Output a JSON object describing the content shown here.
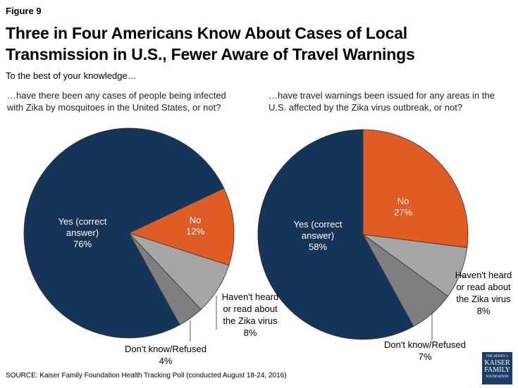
{
  "figure_label": "Figure 9",
  "title": "Three in Four Americans Know About Cases of Local Transmission in U.S., Fewer Aware of Travel Warnings",
  "subtitle": "To the best of your knowledge…",
  "source": "SOURCE: Kaiser Family Foundation Health Tracking Poll (conducted August 18-24, 2016)",
  "logo_text": "THE HENRY J. KAISER FAMILY FOUNDATION",
  "colors": {
    "yes": "#15345a",
    "no": "#e05c25",
    "havent": "#a6a6a6",
    "dontknow": "#7f7f7f"
  },
  "chart_data": [
    {
      "type": "pie",
      "title": "…have there been any cases of people being infected with Zika by mosquitoes in the United States, or not?",
      "slices": [
        {
          "key": "no",
          "label": "No",
          "value": 12,
          "display": "12%"
        },
        {
          "key": "havent",
          "label": "Haven't heard or read about the Zika virus",
          "value": 8,
          "display": "8%"
        },
        {
          "key": "dontknow",
          "label": "Don't know/Refused",
          "value": 4,
          "display": "4%"
        },
        {
          "key": "yes",
          "label": "Yes (correct answer)",
          "value": 76,
          "display": "76%"
        }
      ]
    },
    {
      "type": "pie",
      "title": "…have travel warnings been issued for any areas in the U.S. affected by the Zika virus outbreak, or not?",
      "slices": [
        {
          "key": "no",
          "label": "No",
          "value": 27,
          "display": "27%"
        },
        {
          "key": "havent",
          "label": "Haven't heard or read about the Zika virus",
          "value": 8,
          "display": "8%"
        },
        {
          "key": "dontknow",
          "label": "Don't know/Refused",
          "value": 7,
          "display": "7%"
        },
        {
          "key": "yes",
          "label": "Yes (correct answer)",
          "value": 58,
          "display": "58%"
        }
      ]
    }
  ]
}
